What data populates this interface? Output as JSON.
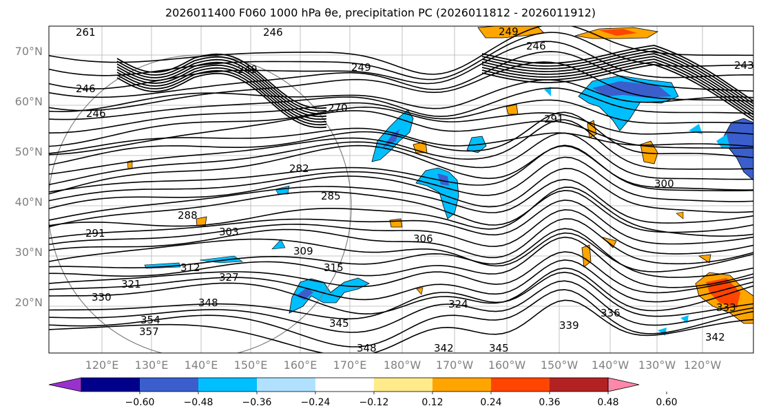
{
  "title": "2026011400 F060 1000 hPa θe, precipitation PC (2026011812 - 2026011912)",
  "map": {
    "lat_labels": [
      "70°N",
      "60°N",
      "50°N",
      "40°N",
      "30°N",
      "20°N"
    ],
    "lon_labels": [
      "120°E",
      "130°E",
      "140°E",
      "150°E",
      "160°E",
      "170°E",
      "180°W",
      "170°W",
      "160°W",
      "150°W",
      "140°W",
      "130°W",
      "120°W"
    ],
    "contour_labels": [
      "246",
      "249",
      "246",
      "249",
      "246",
      "249",
      "261",
      "246",
      "243",
      "270",
      "282",
      "285",
      "288",
      "303",
      "309",
      "291",
      "315",
      "312",
      "321",
      "330",
      "327",
      "348",
      "354",
      "357",
      "345",
      "348",
      "342",
      "345",
      "306",
      "324",
      "339",
      "336",
      "342",
      "300",
      "291",
      "333"
    ]
  },
  "colorbar": {
    "tick_labels": [
      "−0.60",
      "−0.48",
      "−0.36",
      "−0.24",
      "−0.12",
      "0.12",
      "0.24",
      "0.36",
      "0.48",
      "0.60"
    ],
    "colors": [
      "#9932cc",
      "#00008b",
      "#3a5fcd",
      "#00bfff",
      "#b0e2ff",
      "#ffffff",
      "#ffeb8a",
      "#ffa500",
      "#ff4500",
      "#b22222",
      "#ff88aa"
    ]
  }
}
